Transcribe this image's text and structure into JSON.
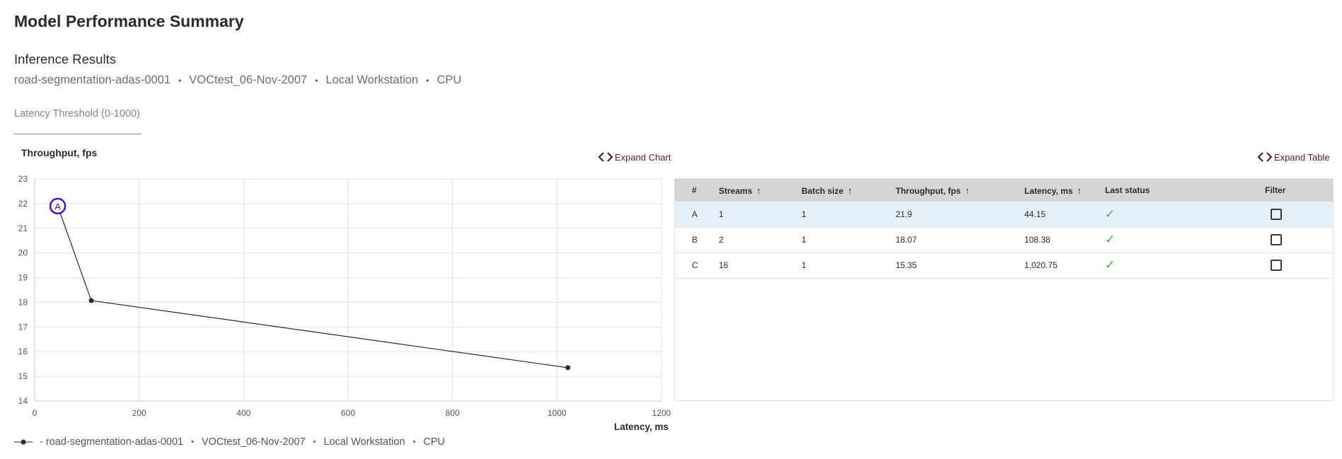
{
  "page_title": "Model Performance Summary",
  "section_title": "Inference Results",
  "meta": [
    "road-segmentation-adas-0001",
    "VOCtest_06-Nov-2007",
    "Local Workstation",
    "CPU"
  ],
  "threshold": {
    "label": "Latency Threshold (0-1000)",
    "value": ""
  },
  "actions": {
    "expand_chart": "Expand Chart",
    "expand_table": "Expand Table"
  },
  "chart_data": {
    "type": "line",
    "xlabel": "Latency, ms",
    "ylabel": "Throughput, fps",
    "xlim": [
      0,
      1200
    ],
    "ylim": [
      14,
      23
    ],
    "x_ticks": [
      "0",
      "200",
      "400",
      "600",
      "800",
      "1000",
      "1200"
    ],
    "y_ticks": [
      "14",
      "15",
      "16",
      "17",
      "18",
      "19",
      "20",
      "21",
      "22",
      "23"
    ],
    "grid": true,
    "series": [
      {
        "name": "- road-segmentation-adas-0001 • VOCtest_06-Nov-2007 • Local Workstation • CPU",
        "points": [
          {
            "label": "A",
            "x": 44.15,
            "y": 21.9
          },
          {
            "label": "B",
            "x": 108.38,
            "y": 18.07
          },
          {
            "label": "C",
            "x": 1020.75,
            "y": 15.35
          }
        ]
      }
    ],
    "highlighted_point": "A",
    "colors": {
      "line": "#2b2b2b",
      "highlight": "#4a10b5",
      "grid": "#e2e2e2"
    }
  },
  "legend": [
    "- road-segmentation-adas-0001",
    "VOCtest_06-Nov-2007",
    "Local Workstation",
    "CPU"
  ],
  "table": {
    "headers": {
      "id": "#",
      "streams": "Streams",
      "batch": "Batch size",
      "throughput": "Throughput, fps",
      "latency": "Latency, ms",
      "status": "Last status",
      "filter": "Filter"
    },
    "rows": [
      {
        "id": "A",
        "streams": "1",
        "batch": "1",
        "throughput": "21.9",
        "latency": "44.15",
        "status": "success",
        "selected": true
      },
      {
        "id": "B",
        "streams": "2",
        "batch": "1",
        "throughput": "18.07",
        "latency": "108.38",
        "status": "success",
        "selected": false
      },
      {
        "id": "C",
        "streams": "16",
        "batch": "1",
        "throughput": "15.35",
        "latency": "1,020.75",
        "status": "success",
        "selected": false
      }
    ]
  },
  "icons": {
    "expand": "expand-icon",
    "sort": "sort-arrow-icon",
    "status": "check-icon",
    "filter": "checkbox"
  }
}
